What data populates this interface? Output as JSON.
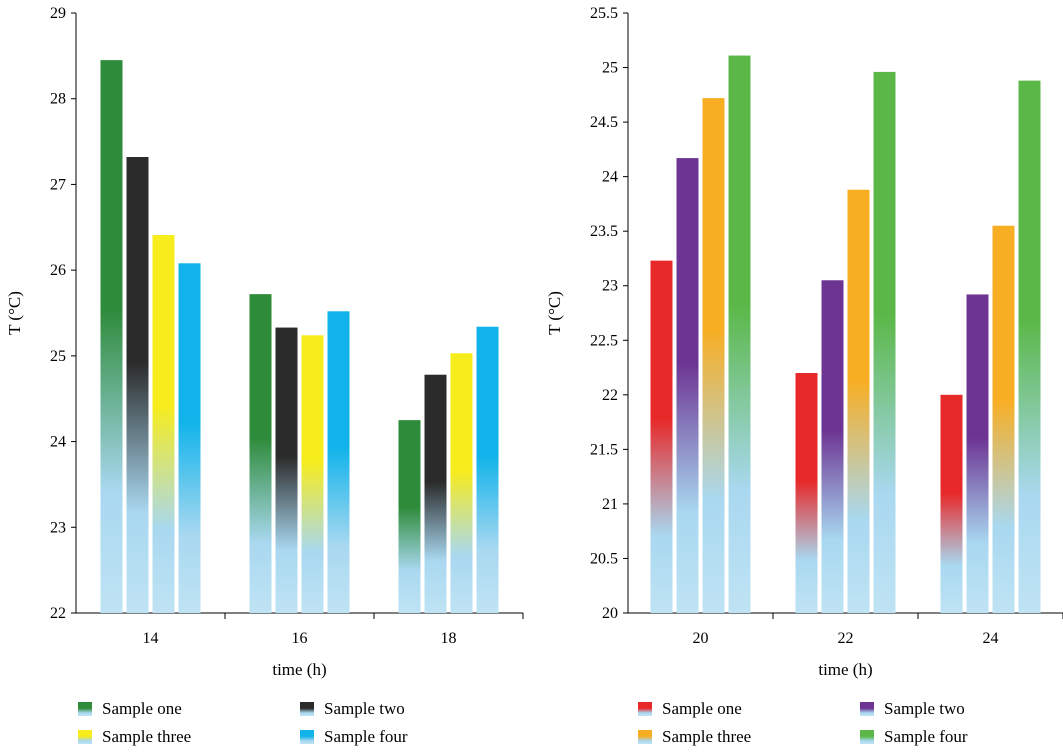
{
  "chart_data": [
    {
      "type": "bar",
      "categories": [
        "14",
        "16",
        "18"
      ],
      "xlabel": "time (h)",
      "ylabel": "T (°C)",
      "ylim": [
        22,
        29
      ],
      "yticks": [
        "22",
        "23",
        "24",
        "25",
        "26",
        "27",
        "28",
        "29"
      ],
      "legend_position": "bottom",
      "series": [
        {
          "name": "Sample one",
          "color": "#2e8b3a",
          "values": [
            28.45,
            25.72,
            24.25
          ]
        },
        {
          "name": "Sample two",
          "color": "#2b2b2b",
          "values": [
            27.32,
            25.33,
            24.78
          ]
        },
        {
          "name": "Sample three",
          "color": "#f7ec1c",
          "values": [
            26.41,
            25.24,
            25.03
          ]
        },
        {
          "name": "Sample four",
          "color": "#10b3ea",
          "values": [
            26.08,
            25.52,
            25.34
          ]
        }
      ]
    },
    {
      "type": "bar",
      "categories": [
        "20",
        "22",
        "24"
      ],
      "xlabel": "time (h)",
      "ylabel": "T (°C)",
      "ylim": [
        20,
        25.5
      ],
      "yticks": [
        "20",
        "20.5",
        "21",
        "21.5",
        "22",
        "22.5",
        "23",
        "23.5",
        "24",
        "24.5",
        "25",
        "25.5"
      ],
      "legend_position": "bottom",
      "series": [
        {
          "name": "Sample one",
          "color": "#e8292a",
          "values": [
            23.23,
            22.2,
            22.0
          ]
        },
        {
          "name": "Sample two",
          "color": "#6d3493",
          "values": [
            24.17,
            23.05,
            22.92
          ]
        },
        {
          "name": "Sample three",
          "color": "#f8ae23",
          "values": [
            24.72,
            23.88,
            23.55
          ]
        },
        {
          "name": "Sample four",
          "color": "#5bb848",
          "values": [
            25.11,
            24.96,
            24.88
          ]
        }
      ]
    }
  ],
  "style": {
    "fade_color": "#a9d8f0",
    "axis_color": "#000000"
  }
}
